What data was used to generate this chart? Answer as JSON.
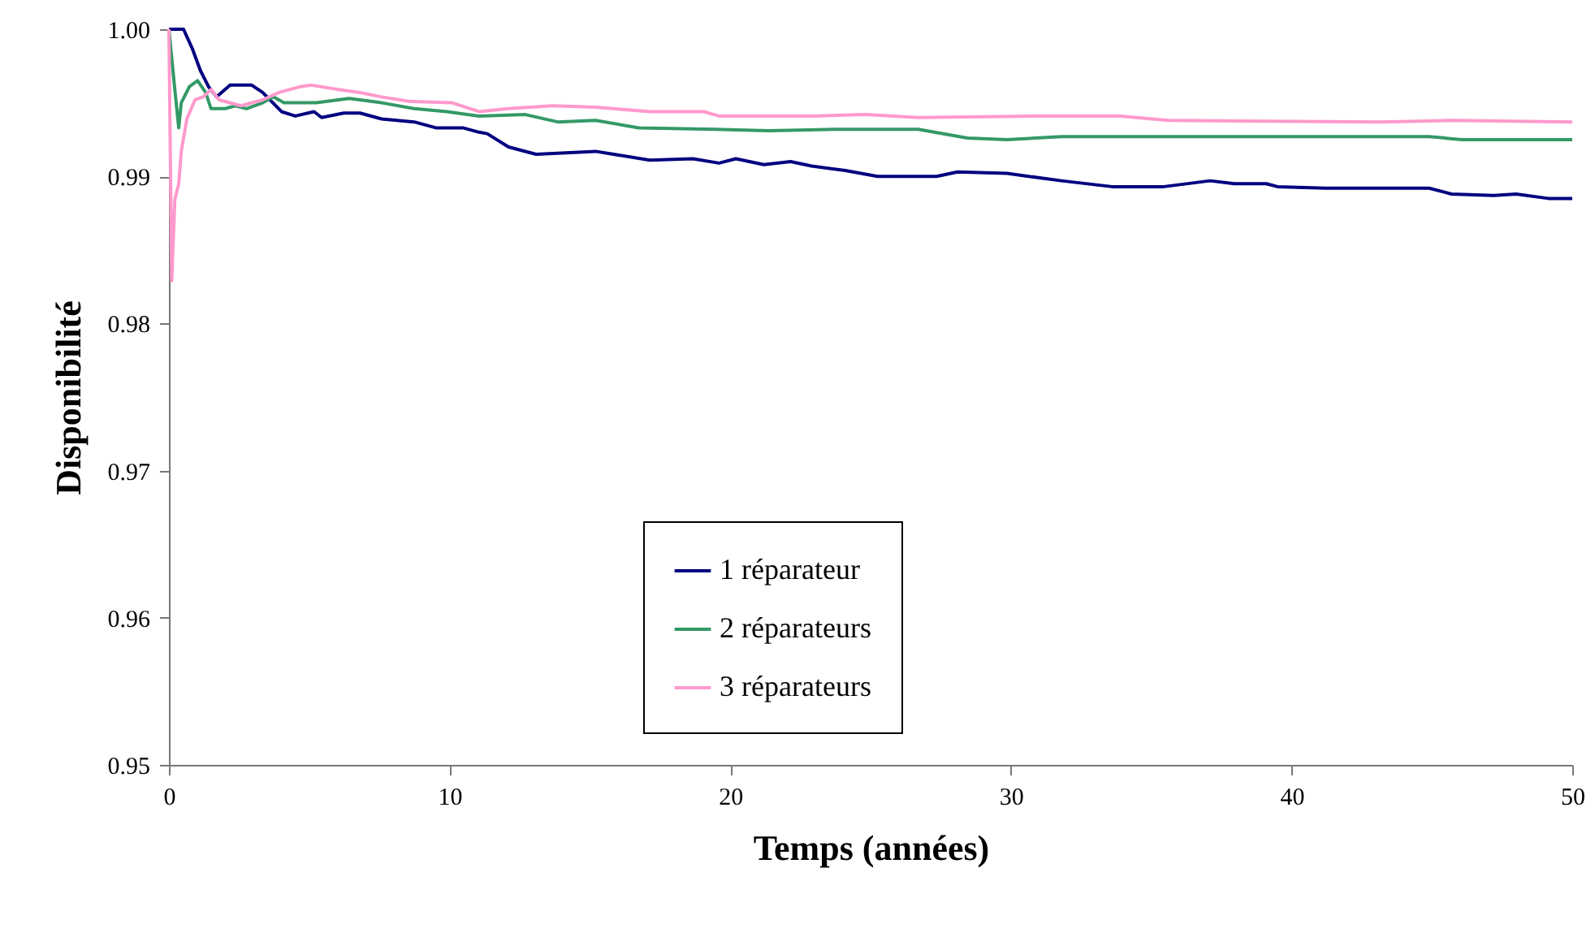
{
  "chart_data": {
    "type": "line",
    "xlabel": "Temps (années)",
    "ylabel": "Disponibilité",
    "xlim": [
      0,
      50
    ],
    "xticks": [
      0,
      10,
      20,
      30,
      40,
      50
    ],
    "ylim": [
      0.95,
      1.0
    ],
    "yticks": [
      {
        "value": 0.95,
        "label": "0.95"
      },
      {
        "value": 0.96,
        "label": "0.96"
      },
      {
        "value": 0.97,
        "label": "0.97"
      },
      {
        "value": 0.98,
        "label": "0.98"
      },
      {
        "value": 0.99,
        "label": "0.99"
      },
      {
        "value": 1.0,
        "label": "1.00"
      }
    ],
    "grid": false,
    "legend": "bottom",
    "line_style": "solid",
    "marker": "none",
    "series": [
      {
        "name": "1 réparateur",
        "color": "#000080",
        "x": [
          0,
          0.52,
          0.83,
          1.12,
          1.41,
          1.7,
          2.18,
          2.95,
          3.34,
          4.01,
          4.5,
          5.17,
          5.44,
          6.23,
          6.81,
          7.58,
          8.74,
          9.51,
          10.47,
          11.05,
          11.34,
          12.1,
          13.08,
          15.2,
          17.13,
          18.67,
          19.6,
          20.2,
          21.2,
          22.15,
          22.9,
          24.1,
          25.25,
          27.35,
          28.1,
          29.86,
          31.8,
          33.6,
          35.45,
          37.1,
          37.96,
          39.1,
          39.5,
          41.2,
          44.9,
          45.7,
          47.2,
          48.0,
          49.15,
          50
        ],
        "values": [
          1.0,
          1.0,
          0.9987,
          0.9972,
          0.9961,
          0.9954,
          0.9962,
          0.9962,
          0.9957,
          0.9944,
          0.9941,
          0.9944,
          0.994,
          0.9943,
          0.9943,
          0.9939,
          0.9937,
          0.9933,
          0.9933,
          0.993,
          0.9929,
          0.992,
          0.9915,
          0.9917,
          0.9911,
          0.9912,
          0.9909,
          0.9912,
          0.9908,
          0.991,
          0.9907,
          0.9904,
          0.99,
          0.99,
          0.9903,
          0.9902,
          0.9897,
          0.9893,
          0.9893,
          0.9897,
          0.9895,
          0.9895,
          0.9893,
          0.9892,
          0.9892,
          0.9888,
          0.9887,
          0.9888,
          0.9885,
          0.9885
        ]
      },
      {
        "name": "2 réparateurs",
        "color": "#339966",
        "x": [
          0,
          0.2,
          0.35,
          0.44,
          0.73,
          1.02,
          1.31,
          1.5,
          1.99,
          2.37,
          2.76,
          3.34,
          3.72,
          4.1,
          5.26,
          6.42,
          7.58,
          8.74,
          9.9,
          11.05,
          12.7,
          13.85,
          15.2,
          16.74,
          19.44,
          21.37,
          23.7,
          26.7,
          28.45,
          29.86,
          31.8,
          39.5,
          44.9,
          46.06,
          50
        ],
        "values": [
          1.0,
          0.9961,
          0.9933,
          0.995,
          0.9961,
          0.9965,
          0.9957,
          0.9946,
          0.9946,
          0.9948,
          0.9946,
          0.995,
          0.9954,
          0.995,
          0.995,
          0.9953,
          0.995,
          0.9946,
          0.9944,
          0.9941,
          0.9942,
          0.9937,
          0.9938,
          0.9933,
          0.9932,
          0.9931,
          0.9932,
          0.9932,
          0.9926,
          0.9925,
          0.9927,
          0.9927,
          0.9927,
          0.9925,
          0.9925
        ]
      },
      {
        "name": "3 réparateurs",
        "color": "#ff99cc",
        "x": [
          0,
          0.1,
          0.21,
          0.35,
          0.44,
          0.64,
          0.93,
          1.22,
          1.5,
          1.79,
          2.56,
          3.34,
          3.92,
          4.69,
          5.07,
          6.04,
          6.81,
          7.58,
          8.55,
          10.09,
          11.05,
          12.1,
          13.66,
          15.2,
          17.13,
          19.06,
          19.6,
          22.9,
          24.8,
          26.7,
          31.0,
          33.9,
          35.6,
          43.2,
          45.7,
          50
        ],
        "values": [
          1.0,
          0.9829,
          0.9884,
          0.9895,
          0.9917,
          0.9939,
          0.9952,
          0.9954,
          0.9959,
          0.9952,
          0.9948,
          0.9952,
          0.9957,
          0.9961,
          0.9962,
          0.9959,
          0.9957,
          0.9954,
          0.9951,
          0.995,
          0.9944,
          0.9946,
          0.9948,
          0.9947,
          0.9944,
          0.9944,
          0.9941,
          0.9941,
          0.9942,
          0.994,
          0.9941,
          0.9941,
          0.9938,
          0.9937,
          0.9938,
          0.9937
        ]
      }
    ]
  }
}
